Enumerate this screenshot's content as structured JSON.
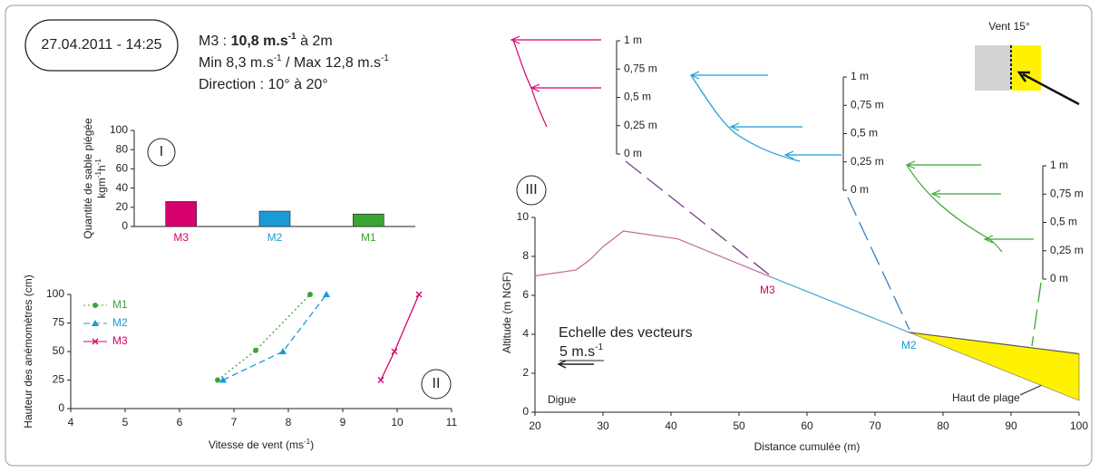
{
  "header": {
    "date": "27.04.2011 - 14:25",
    "line1": {
      "prefix": "M3 : ",
      "bold": "10,8 m.s",
      "sup": "-1",
      "suffix": " à 2m"
    },
    "line2": {
      "a": "Min 8,3 m.s",
      "sup1": "-1",
      "b": " / Max 12,8 m.s",
      "sup2": "-1"
    },
    "line3": "Direction : 10° à 20°"
  },
  "chart_data": [
    {
      "type": "bar",
      "label": "I",
      "ylabel": "Quantité de sable piégée",
      "yunit": {
        "a": "kgm",
        "sup1": "-1",
        "b": "h",
        "sup2": "-1"
      },
      "categories": [
        "M3",
        "M2",
        "M1"
      ],
      "values": [
        26,
        16,
        13
      ],
      "colors": [
        "#d6006f",
        "#1a9bd7",
        "#3aa535"
      ],
      "ylim": [
        0,
        100
      ],
      "yticks": [
        0,
        20,
        40,
        60,
        80,
        100
      ]
    },
    {
      "type": "line",
      "label": "II",
      "xlabel": {
        "a": "Vitesse de vent (ms",
        "sup": "-1",
        "b": ")"
      },
      "ylabel": "Hauteur des anémomètres (cm)",
      "xlim": [
        4,
        11
      ],
      "xticks": [
        4,
        5,
        6,
        7,
        8,
        9,
        10,
        11
      ],
      "ylim": [
        0,
        100
      ],
      "yticks": [
        0,
        25,
        50,
        75,
        100
      ],
      "series": [
        {
          "name": "M1",
          "color": "#3aa535",
          "marker": "circle",
          "dash": "2,3",
          "x": [
            6.7,
            7.4,
            8.4
          ],
          "values": [
            25,
            51,
            100
          ]
        },
        {
          "name": "M2",
          "color": "#1a9bd7",
          "marker": "triangle",
          "dash": "7,4",
          "x": [
            6.8,
            7.9,
            8.7
          ],
          "values": [
            25,
            50,
            100
          ]
        },
        {
          "name": "M3",
          "color": "#d6006f",
          "marker": "cross",
          "dash": "",
          "x": [
            9.7,
            9.95,
            10.4
          ],
          "values": [
            25,
            50,
            100
          ]
        }
      ]
    },
    {
      "type": "profile",
      "label": "III",
      "xlabel": "Distance cumulée (m)",
      "ylabel": "Altitude (m NGF)",
      "xlim": [
        20,
        100
      ],
      "xticks": [
        20,
        30,
        40,
        50,
        60,
        70,
        80,
        90,
        100
      ],
      "ylim": [
        0,
        10
      ],
      "yticks": [
        0,
        2,
        4,
        6,
        8,
        10
      ],
      "series": [
        {
          "color": "#c2689c",
          "x": [
            20,
            26,
            28,
            30,
            33,
            41,
            55
          ],
          "values": [
            7,
            7.3,
            7.8,
            8.5,
            9.3,
            8.9,
            6.9
          ]
        },
        {
          "color": "#4aa8d8",
          "x": [
            55,
            75
          ],
          "values": [
            6.9,
            4.1
          ]
        },
        {
          "color": "#555555",
          "x": [
            75,
            100
          ],
          "values": [
            4.1,
            3
          ]
        }
      ],
      "area": {
        "name": "Haut de plage",
        "color": "#fff200",
        "x": [
          75,
          100,
          100
        ],
        "values": [
          4.1,
          3,
          0.6
        ]
      },
      "stations": [
        "M3",
        "M2",
        "M1"
      ],
      "digue": "Digue",
      "scale_title": "Echelle des vecteurs",
      "scale_value": {
        "a": "5 m.s",
        "sup": "-1"
      },
      "height_labels": [
        "1 m",
        "0,75 m",
        "0,5 m",
        "0,25 m",
        "0 m"
      ],
      "wind": "Vent 15°"
    }
  ]
}
